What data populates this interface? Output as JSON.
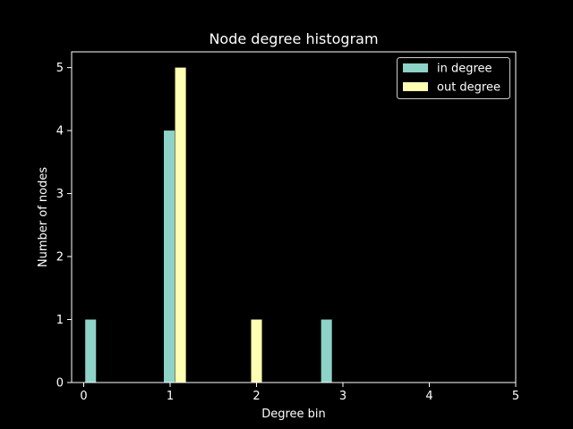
{
  "chart_data": {
    "type": "bar",
    "title": "Node degree histogram",
    "xlabel": "Degree bin",
    "ylabel": "Number of nodes",
    "xlim": [
      -0.14,
      5
    ],
    "ylim": [
      0,
      5.25
    ],
    "xticks": [
      "0",
      "1",
      "2",
      "3",
      "4",
      "5"
    ],
    "yticks": [
      "0",
      "1",
      "2",
      "3",
      "4",
      "5"
    ],
    "grid": false,
    "legend": "upper right",
    "series": [
      {
        "name": "in degree",
        "color": "#8dd3c7",
        "bars": [
          {
            "x": 0.08,
            "value": 1
          },
          {
            "x": 0.99,
            "value": 4
          },
          {
            "x": 2.81,
            "value": 1
          }
        ]
      },
      {
        "name": "out degree",
        "color": "#ffffb3",
        "bars": [
          {
            "x": 1.12,
            "value": 5
          },
          {
            "x": 2.0,
            "value": 1
          }
        ]
      }
    ]
  }
}
